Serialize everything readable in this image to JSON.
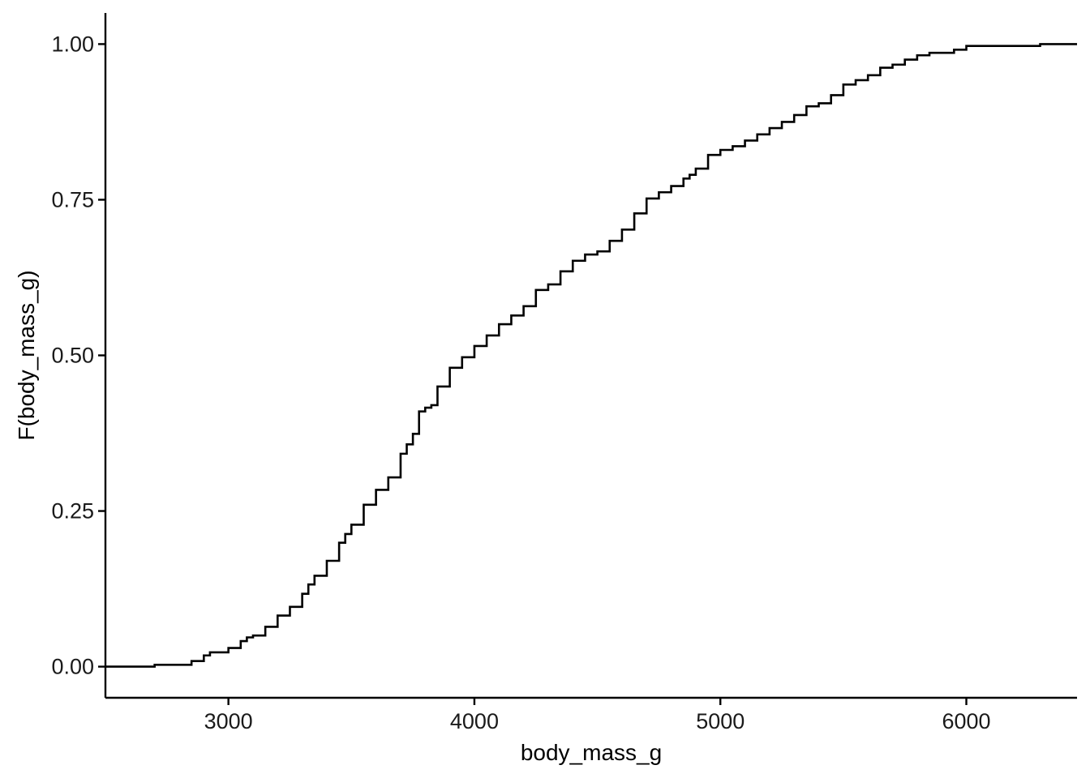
{
  "chart_data": {
    "type": "line",
    "geom": "step",
    "xlabel": "body_mass_g",
    "ylabel": "F(body_mass_g)",
    "xlim": [
      2500,
      6450
    ],
    "ylim": [
      -0.05,
      1.05
    ],
    "x_ticks": [
      3000,
      4000,
      5000,
      6000
    ],
    "x_tick_labels": [
      "3000",
      "4000",
      "5000",
      "6000"
    ],
    "y_ticks": [
      0,
      0.25,
      0.5,
      0.75,
      1
    ],
    "y_tick_labels": [
      "0.00",
      "0.25",
      "0.50",
      "0.75",
      "1.00"
    ],
    "grid": false,
    "line_color": "#000000",
    "series": [
      {
        "x": [
          2500,
          2700,
          2850,
          2900,
          2925,
          3000,
          3050,
          3075,
          3100,
          3150,
          3200,
          3250,
          3300,
          3325,
          3350,
          3400,
          3450,
          3475,
          3500,
          3550,
          3600,
          3650,
          3700,
          3725,
          3750,
          3775,
          3800,
          3825,
          3850,
          3900,
          3950,
          4000,
          4050,
          4100,
          4150,
          4200,
          4250,
          4300,
          4350,
          4400,
          4450,
          4500,
          4550,
          4600,
          4650,
          4700,
          4750,
          4800,
          4850,
          4875,
          4900,
          4950,
          5000,
          5050,
          5100,
          5150,
          5200,
          5250,
          5300,
          5350,
          5400,
          5450,
          5500,
          5550,
          5600,
          5650,
          5700,
          5750,
          5800,
          5850,
          5950,
          6000,
          6050,
          6300,
          6450
        ],
        "y": [
          0,
          0.003,
          0.009,
          0.018,
          0.023,
          0.03,
          0.041,
          0.047,
          0.05,
          0.064,
          0.082,
          0.096,
          0.117,
          0.132,
          0.146,
          0.17,
          0.199,
          0.213,
          0.228,
          0.26,
          0.284,
          0.304,
          0.342,
          0.357,
          0.374,
          0.41,
          0.416,
          0.42,
          0.45,
          0.48,
          0.497,
          0.515,
          0.532,
          0.55,
          0.564,
          0.579,
          0.605,
          0.614,
          0.635,
          0.652,
          0.662,
          0.667,
          0.684,
          0.702,
          0.728,
          0.752,
          0.762,
          0.772,
          0.784,
          0.79,
          0.8,
          0.822,
          0.83,
          0.836,
          0.845,
          0.855,
          0.865,
          0.875,
          0.886,
          0.9,
          0.905,
          0.918,
          0.935,
          0.942,
          0.95,
          0.962,
          0.967,
          0.975,
          0.982,
          0.986,
          0.991,
          0.997,
          0.997,
          1,
          1
        ]
      }
    ]
  }
}
